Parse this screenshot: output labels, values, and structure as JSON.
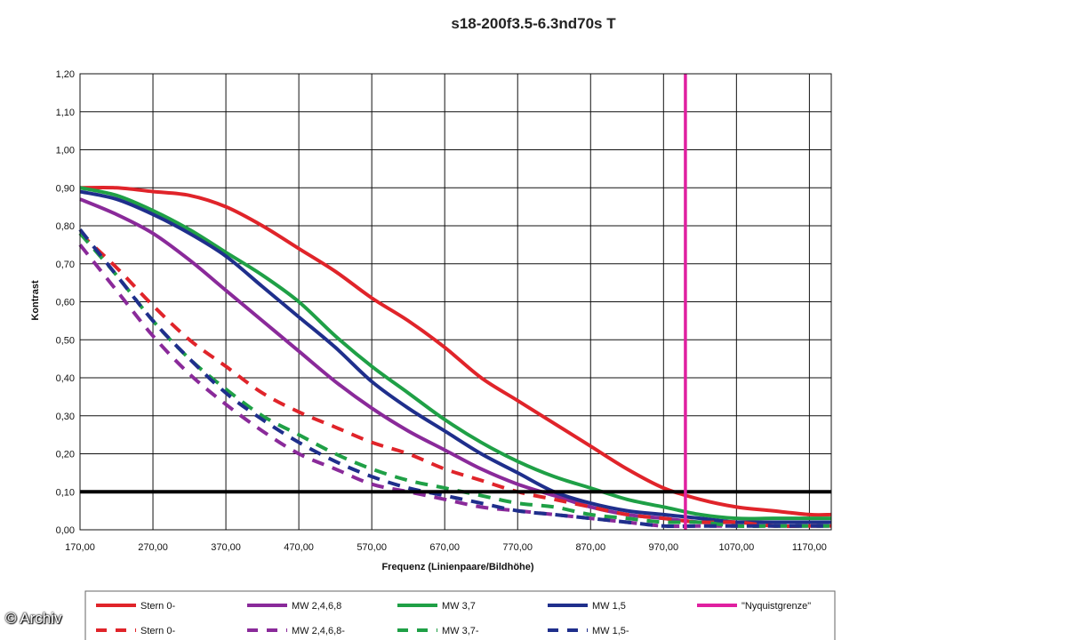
{
  "watermark": "© Archiv",
  "chart_data": {
    "type": "line",
    "title": "s18-200f3.5-6.3nd70s T",
    "xlabel": "Frequenz (Linienpaare/Bildhöhe)",
    "ylabel": "Kontrast",
    "xlim": [
      170,
      1200
    ],
    "ylim": [
      0,
      1.2
    ],
    "xticks": [
      "170,00",
      "270,00",
      "370,00",
      "470,00",
      "570,00",
      "670,00",
      "770,00",
      "870,00",
      "970,00",
      "1070,00",
      "1170,00"
    ],
    "xtick_values": [
      170,
      270,
      370,
      470,
      570,
      670,
      770,
      870,
      970,
      1070,
      1170
    ],
    "yticks": [
      "0,00",
      "0,10",
      "0,20",
      "0,30",
      "0,40",
      "0,50",
      "0,60",
      "0,70",
      "0,80",
      "0,90",
      "1,00",
      "1,10",
      "1,20"
    ],
    "ytick_values": [
      0,
      0.1,
      0.2,
      0.3,
      0.4,
      0.5,
      0.6,
      0.7,
      0.8,
      0.9,
      1.0,
      1.1,
      1.2
    ],
    "grid": true,
    "legend_position": "bottom",
    "reference_lines": [
      {
        "orientation": "horizontal",
        "value": 0.1,
        "color": "#000000"
      },
      {
        "orientation": "vertical",
        "value": 1000,
        "color": "#e020a0",
        "name": "\"Nyquistgrenze\""
      }
    ],
    "series": [
      {
        "name": "Stern 0-",
        "color": "#e0242a",
        "dash": false,
        "x": [
          170,
          220,
          270,
          320,
          370,
          420,
          470,
          520,
          570,
          620,
          670,
          720,
          770,
          820,
          870,
          920,
          970,
          1020,
          1070,
          1120,
          1170,
          1200
        ],
        "y": [
          0.9,
          0.9,
          0.89,
          0.88,
          0.85,
          0.8,
          0.74,
          0.68,
          0.61,
          0.55,
          0.48,
          0.4,
          0.34,
          0.28,
          0.22,
          0.16,
          0.11,
          0.08,
          0.06,
          0.05,
          0.04,
          0.04
        ]
      },
      {
        "name": "MW 2,4,6,8",
        "color": "#8a2a9a",
        "dash": false,
        "x": [
          170,
          220,
          270,
          320,
          370,
          420,
          470,
          520,
          570,
          620,
          670,
          720,
          770,
          820,
          870,
          920,
          970,
          1020,
          1070,
          1120,
          1170,
          1200
        ],
        "y": [
          0.87,
          0.83,
          0.78,
          0.71,
          0.63,
          0.55,
          0.47,
          0.39,
          0.32,
          0.26,
          0.21,
          0.16,
          0.12,
          0.09,
          0.06,
          0.04,
          0.03,
          0.02,
          0.02,
          0.02,
          0.02,
          0.02
        ]
      },
      {
        "name": "MW 3,7",
        "color": "#1fa046",
        "dash": false,
        "x": [
          170,
          220,
          270,
          320,
          370,
          420,
          470,
          520,
          570,
          620,
          670,
          720,
          770,
          820,
          870,
          920,
          970,
          1020,
          1070,
          1120,
          1170,
          1200
        ],
        "y": [
          0.9,
          0.88,
          0.84,
          0.79,
          0.73,
          0.67,
          0.6,
          0.51,
          0.43,
          0.36,
          0.29,
          0.23,
          0.18,
          0.14,
          0.11,
          0.08,
          0.06,
          0.04,
          0.03,
          0.03,
          0.03,
          0.03
        ]
      },
      {
        "name": "MW 1,5",
        "color": "#1f2f8c",
        "dash": false,
        "x": [
          170,
          220,
          270,
          320,
          370,
          420,
          470,
          520,
          570,
          620,
          670,
          720,
          770,
          820,
          870,
          920,
          970,
          1020,
          1070,
          1120,
          1170,
          1200
        ],
        "y": [
          0.89,
          0.87,
          0.83,
          0.78,
          0.72,
          0.64,
          0.56,
          0.48,
          0.39,
          0.32,
          0.26,
          0.2,
          0.15,
          0.1,
          0.07,
          0.05,
          0.04,
          0.03,
          0.02,
          0.02,
          0.02,
          0.02
        ]
      },
      {
        "name": "Stern 0-",
        "color": "#e0242a",
        "dash": true,
        "x": [
          170,
          220,
          270,
          320,
          370,
          420,
          470,
          520,
          570,
          620,
          670,
          720,
          770,
          820,
          870,
          920,
          970,
          1020,
          1070,
          1120,
          1170,
          1200
        ],
        "y": [
          0.78,
          0.69,
          0.59,
          0.5,
          0.43,
          0.36,
          0.31,
          0.27,
          0.23,
          0.2,
          0.16,
          0.13,
          0.1,
          0.08,
          0.06,
          0.04,
          0.03,
          0.02,
          0.02,
          0.01,
          0.01,
          0.01
        ]
      },
      {
        "name": "MW 2,4,6,8-",
        "color": "#8a2a9a",
        "dash": true,
        "x": [
          170,
          220,
          270,
          320,
          370,
          420,
          470,
          520,
          570,
          620,
          670,
          720,
          770,
          820,
          870,
          920,
          970,
          1020,
          1070,
          1120,
          1170,
          1200
        ],
        "y": [
          0.75,
          0.63,
          0.51,
          0.41,
          0.33,
          0.26,
          0.2,
          0.16,
          0.12,
          0.1,
          0.08,
          0.06,
          0.05,
          0.04,
          0.03,
          0.02,
          0.01,
          0.01,
          0.01,
          0.01,
          0.01,
          0.01
        ]
      },
      {
        "name": "MW 3,7-",
        "color": "#1fa046",
        "dash": true,
        "x": [
          170,
          220,
          270,
          320,
          370,
          420,
          470,
          520,
          570,
          620,
          670,
          720,
          770,
          820,
          870,
          920,
          970,
          1020,
          1070,
          1120,
          1170,
          1200
        ],
        "y": [
          0.78,
          0.67,
          0.55,
          0.45,
          0.37,
          0.3,
          0.25,
          0.2,
          0.16,
          0.13,
          0.11,
          0.09,
          0.07,
          0.06,
          0.04,
          0.03,
          0.02,
          0.02,
          0.01,
          0.01,
          0.01,
          0.01
        ]
      },
      {
        "name": "MW 1,5-",
        "color": "#1f2f8c",
        "dash": true,
        "x": [
          170,
          220,
          270,
          320,
          370,
          420,
          470,
          520,
          570,
          620,
          670,
          720,
          770,
          820,
          870,
          920,
          970,
          1020,
          1070,
          1120,
          1170,
          1200
        ],
        "y": [
          0.79,
          0.67,
          0.55,
          0.45,
          0.36,
          0.29,
          0.23,
          0.18,
          0.14,
          0.11,
          0.09,
          0.07,
          0.05,
          0.04,
          0.03,
          0.02,
          0.01,
          0.01,
          0.01,
          0.01,
          0.01,
          0.01
        ]
      }
    ],
    "legend": [
      {
        "label": "Stern 0-",
        "color": "#e0242a",
        "dash": false
      },
      {
        "label": "MW 2,4,6,8",
        "color": "#8a2a9a",
        "dash": false
      },
      {
        "label": "MW 3,7",
        "color": "#1fa046",
        "dash": false
      },
      {
        "label": "MW 1,5",
        "color": "#1f2f8c",
        "dash": false
      },
      {
        "label": "\"Nyquistgrenze\"",
        "color": "#e020a0",
        "dash": false
      },
      {
        "label": "Stern 0-",
        "color": "#e0242a",
        "dash": true
      },
      {
        "label": "MW 2,4,6,8-",
        "color": "#8a2a9a",
        "dash": true
      },
      {
        "label": "MW 3,7-",
        "color": "#1fa046",
        "dash": true
      },
      {
        "label": "MW 1,5-",
        "color": "#1f2f8c",
        "dash": true
      }
    ]
  }
}
